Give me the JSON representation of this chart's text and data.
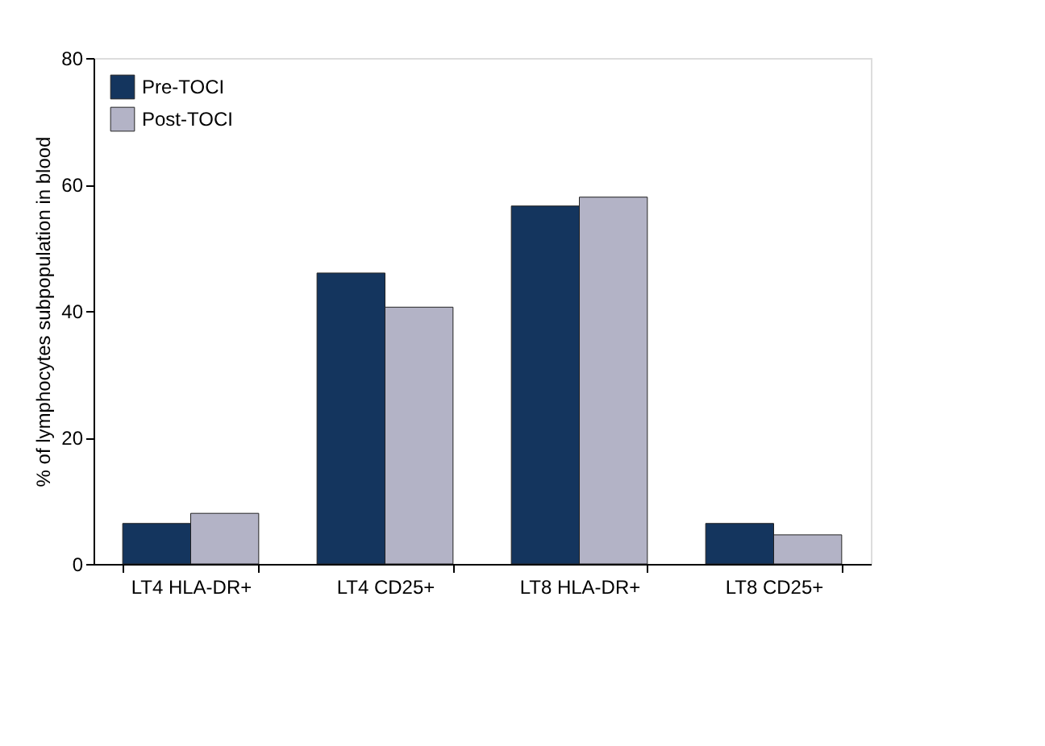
{
  "chart_data": {
    "type": "bar",
    "ylabel": "% of lymphocytes subpopulation in blood",
    "categories": [
      "LT4 HLA-DR+",
      "LT4 CD25+",
      "LT8 HLA-DR+",
      "LT8 CD25+"
    ],
    "series": [
      {
        "name": "Pre-TOCI",
        "color": "#14355e",
        "values": [
          6.4,
          46.0,
          56.6,
          6.4
        ]
      },
      {
        "name": "Post-TOCI",
        "color": "#b3b3c6",
        "values": [
          8.0,
          40.6,
          58.0,
          4.6
        ]
      }
    ],
    "ylim": [
      0,
      80
    ],
    "yticks": [
      0,
      20,
      40,
      60,
      80
    ],
    "grid": false,
    "legend": "top left"
  }
}
